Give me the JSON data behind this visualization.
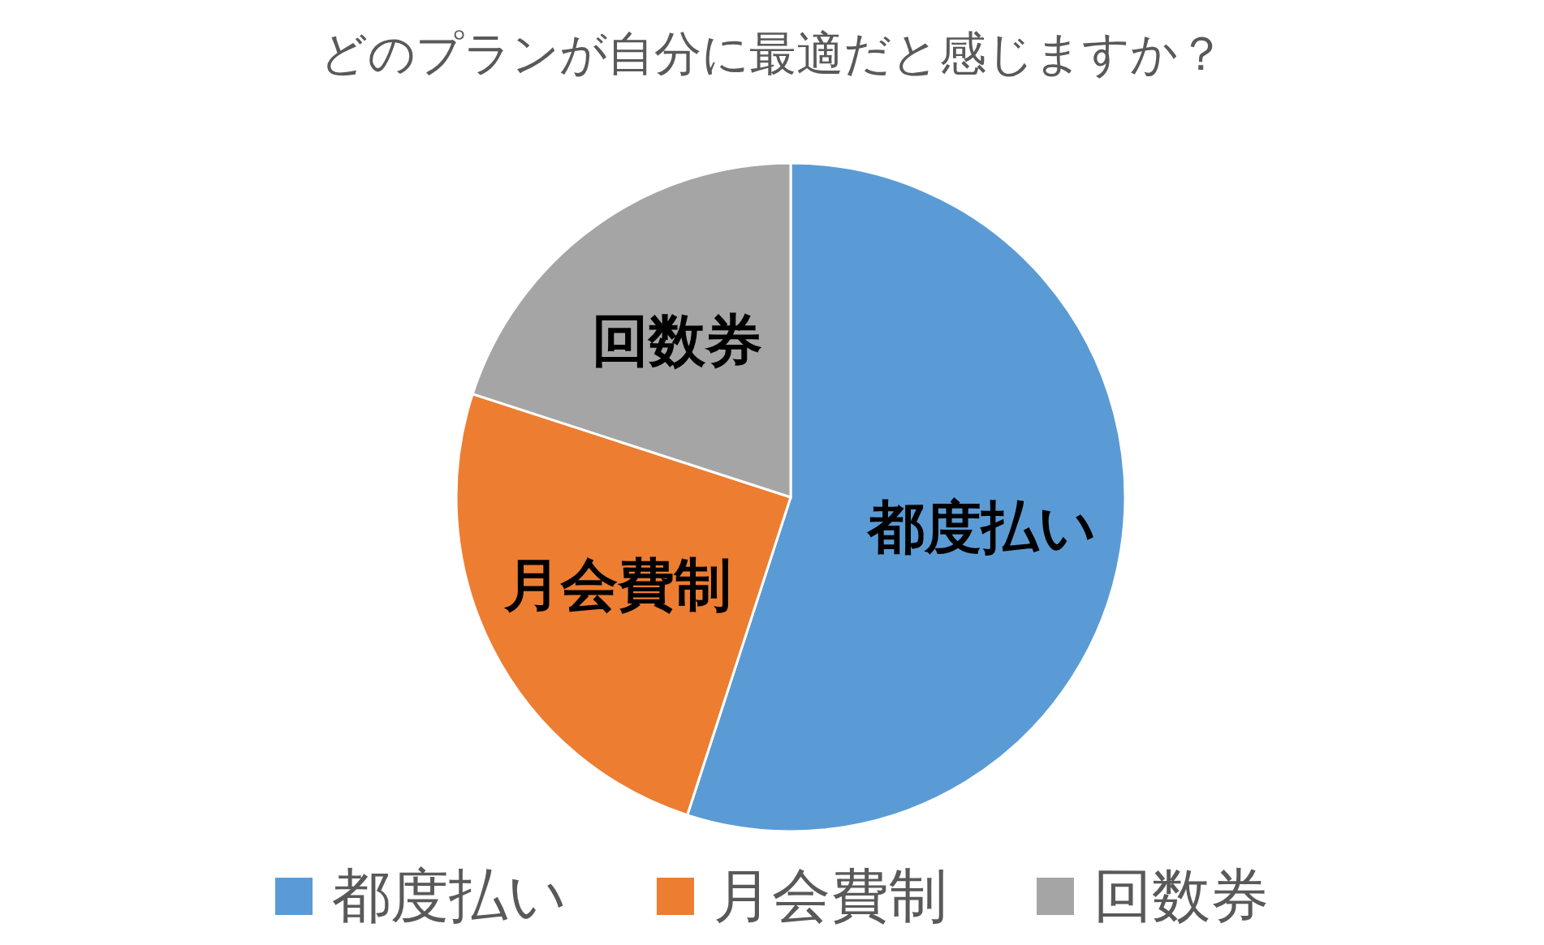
{
  "chart_data": {
    "type": "pie",
    "title": "どのプランが自分に最適だと感じますか？",
    "categories": [
      "都度払い",
      "月会費制",
      "回数券"
    ],
    "values": [
      55,
      25,
      20
    ],
    "colors": [
      "#5b9bd5",
      "#ed7d31",
      "#a5a5a5"
    ],
    "legend": "bottom"
  }
}
